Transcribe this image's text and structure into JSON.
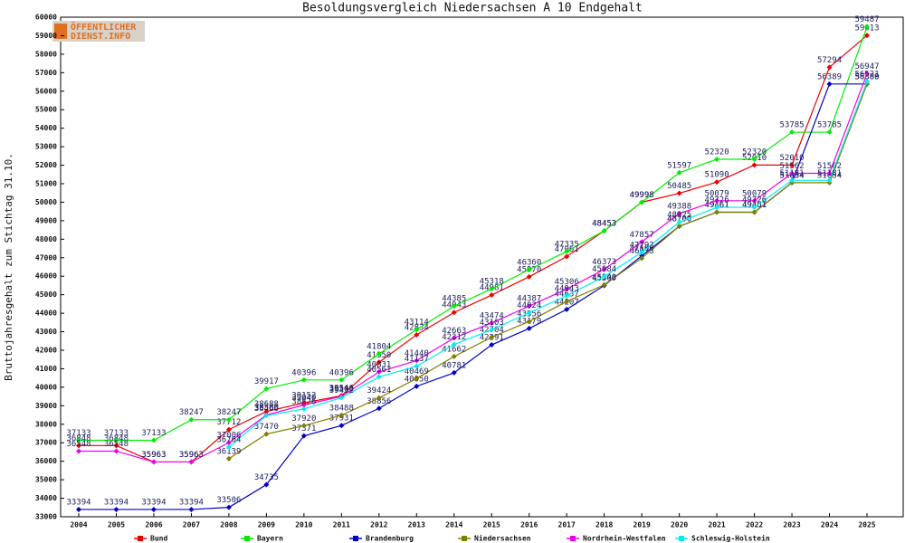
{
  "logo": [
    "ÖFFENTLICHER",
    "DIENST.INFO"
  ],
  "chart_data": {
    "type": "line",
    "title": "Besoldungsvergleich Niedersachsen A 10 Endgehalt",
    "y_label": "Bruttojahresgehalt zum Stichtag 31.10.",
    "categories": [
      "2004",
      "2005",
      "2006",
      "2007",
      "2008",
      "2009",
      "2010",
      "2011",
      "2012",
      "2013",
      "2014",
      "2015",
      "2016",
      "2017",
      "2018",
      "2019",
      "2020",
      "2021",
      "2022",
      "2023",
      "2024",
      "2025"
    ],
    "ylim": [
      33000,
      60000
    ],
    "yticks": [
      33000,
      34000,
      35000,
      36000,
      37000,
      38000,
      39000,
      40000,
      41000,
      42000,
      43000,
      44000,
      45000,
      46000,
      47000,
      48000,
      49000,
      50000,
      51000,
      52000,
      53000,
      54000,
      55000,
      56000,
      57000,
      58000,
      59000,
      60000
    ],
    "grid": false,
    "legend": "bottom",
    "series": [
      {
        "name": "Bund",
        "color": "#ee0000",
        "values": [
          36848,
          36848,
          35963,
          35963,
          37712,
          38688,
          39152,
          39546,
          41350,
          42834,
          44043,
          44981,
          45970,
          47061,
          48453,
          49998,
          50485,
          51090,
          52010,
          52010,
          57294,
          59013
        ]
      },
      {
        "name": "Bayern",
        "color": "#00ee00",
        "values": [
          37133,
          37133,
          37133,
          38247,
          38247,
          39917,
          40396,
          40396,
          41804,
          43114,
          44385,
          45318,
          46360,
          47335,
          48453,
          49998,
          51597,
          52320,
          52320,
          53785,
          53785,
          59487
        ]
      },
      {
        "name": "Brandenburg",
        "color": "#0000cc",
        "values": [
          33394,
          33394,
          33394,
          33394,
          33506,
          34735,
          37371,
          37931,
          38856,
          40050,
          40781,
          42291,
          43179,
          44207,
          45500,
          47100,
          48700,
          49461,
          49461,
          51054,
          56389,
          56389
        ]
      },
      {
        "name": "Niedersachsen",
        "color": "#808000",
        "values": [
          null,
          null,
          null,
          null,
          36139,
          37470,
          37920,
          38488,
          39424,
          40469,
          41662,
          42704,
          43556,
          44637,
          45540,
          46973,
          48700,
          49461,
          49461,
          51054,
          51054,
          56380
        ]
      },
      {
        "name": "Nordrhein-Westfalen",
        "color": "#ee00ee",
        "values": [
          36548,
          36548,
          35963,
          35963,
          37006,
          38500,
          39040,
          39500,
          40831,
          41440,
          42663,
          43474,
          44387,
          45306,
          46373,
          47857,
          49388,
          50079,
          50079,
          51562,
          51562,
          56947
        ]
      },
      {
        "name": "Schleswig-Holstein",
        "color": "#00eeee",
        "values": [
          null,
          null,
          null,
          null,
          36764,
          38466,
          38826,
          39432,
          40561,
          41137,
          42312,
          43103,
          44024,
          44943,
          45984,
          47292,
          48925,
          49726,
          49726,
          51181,
          51181,
          56521
        ]
      }
    ]
  }
}
